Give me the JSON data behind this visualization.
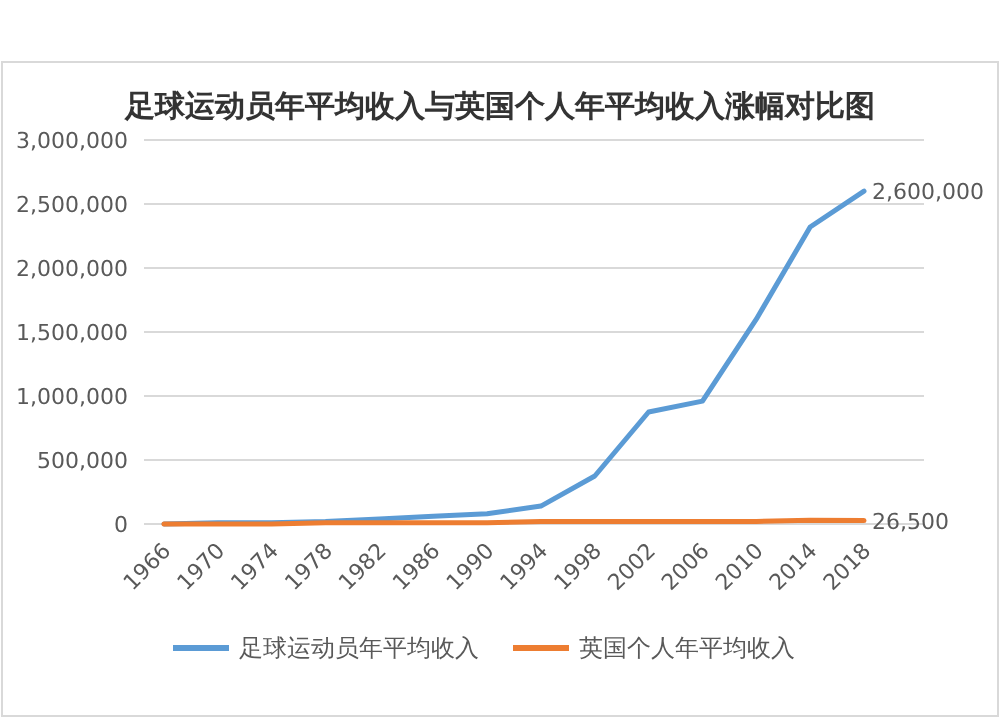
{
  "chart_data": {
    "type": "line",
    "title": "足球运动员年平均收入与英国个人年平均收入涨幅对比图",
    "categories": [
      "1966",
      "1970",
      "1974",
      "1978",
      "1982",
      "1986",
      "1990",
      "1994",
      "1998",
      "2002",
      "2006",
      "2010",
      "2014",
      "2018"
    ],
    "series": [
      {
        "name": "足球运动员年平均收入",
        "color": "#5b9bd5",
        "values": [
          0,
          10000,
          10000,
          20000,
          40000,
          60000,
          80000,
          140000,
          375000,
          875000,
          960000,
          1600000,
          2320000,
          2600000
        ],
        "value_labels": [
          null,
          null,
          null,
          null,
          null,
          null,
          null,
          null,
          null,
          null,
          null,
          null,
          null,
          "2,600,000"
        ]
      },
      {
        "name": "英国个人年平均收入",
        "color": "#ed7d31",
        "values": [
          0,
          0,
          0,
          10000,
          10000,
          10000,
          10000,
          20000,
          20000,
          20000,
          20000,
          20000,
          30000,
          26500
        ],
        "value_labels": [
          null,
          null,
          null,
          null,
          null,
          null,
          null,
          null,
          null,
          null,
          null,
          null,
          null,
          "26,500"
        ]
      }
    ],
    "ylim": [
      0,
      3000000
    ],
    "yticks": [
      {
        "value": 0,
        "label": "0"
      },
      {
        "value": 500000,
        "label": "500,000"
      },
      {
        "value": 1000000,
        "label": "1,000,000"
      },
      {
        "value": 1500000,
        "label": "1,500,000"
      },
      {
        "value": 2000000,
        "label": "2,000,000"
      },
      {
        "value": 2500000,
        "label": "2,500,000"
      },
      {
        "value": 3000000,
        "label": "3,000,000"
      }
    ],
    "grid": "y",
    "legend": "bottom",
    "marker": "none",
    "line_style": "solid"
  }
}
